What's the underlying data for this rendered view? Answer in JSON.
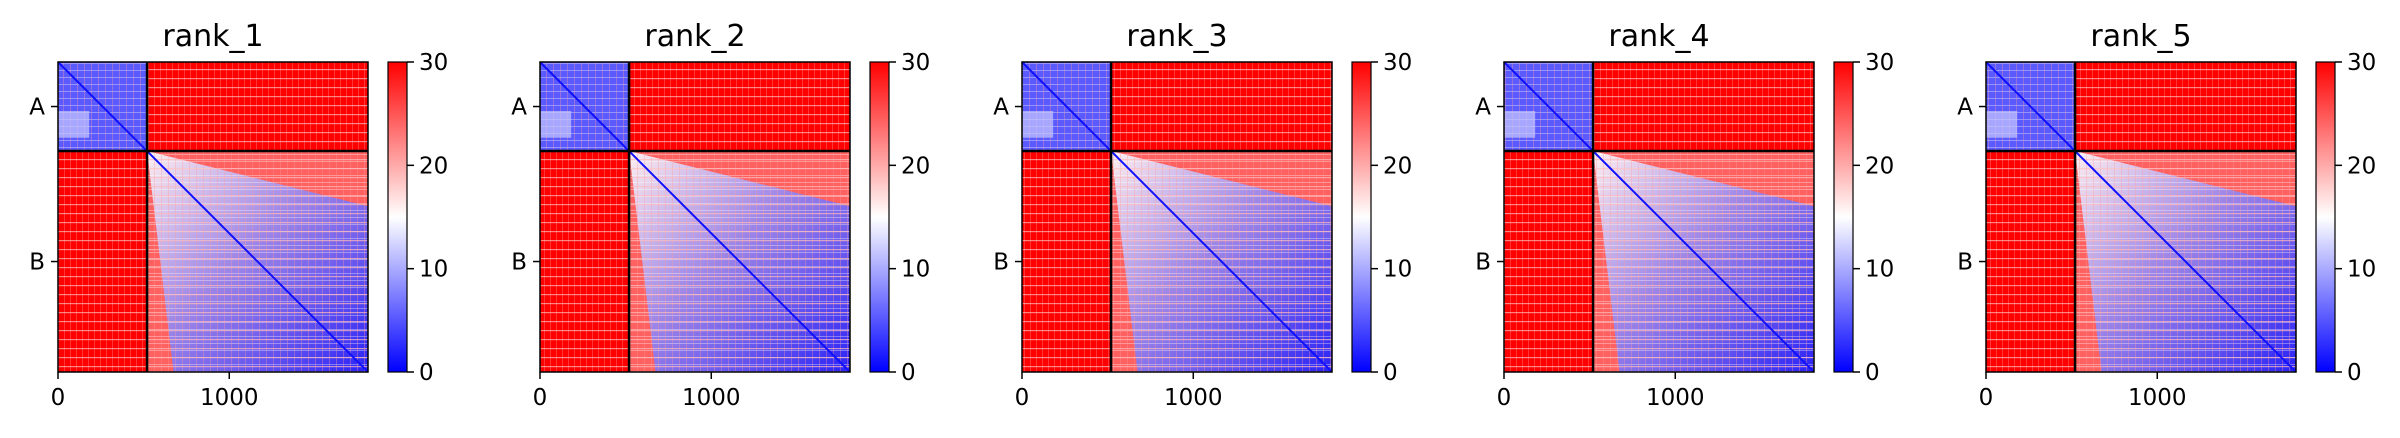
{
  "chart_data": [
    {
      "type": "heatmap",
      "title": "rank_1",
      "x_ticks": [
        "0",
        "1000"
      ],
      "y_ticks": [
        "A",
        "B"
      ],
      "colorbar": {
        "ticks": [
          "0",
          "10",
          "20",
          "30"
        ],
        "range": [
          0,
          30
        ]
      },
      "segments": {
        "A": [
          0,
          520
        ],
        "B": [
          520,
          1810
        ]
      },
      "xlim": [
        0,
        1810
      ],
      "colormap": [
        "#0000ff",
        "#ffffff",
        "#ff0000"
      ]
    },
    {
      "type": "heatmap",
      "title": "rank_2",
      "x_ticks": [
        "0",
        "1000"
      ],
      "y_ticks": [
        "A",
        "B"
      ],
      "colorbar": {
        "ticks": [
          "0",
          "10",
          "20",
          "30"
        ],
        "range": [
          0,
          30
        ]
      },
      "segments": {
        "A": [
          0,
          520
        ],
        "B": [
          520,
          1810
        ]
      },
      "xlim": [
        0,
        1810
      ],
      "colormap": [
        "#0000ff",
        "#ffffff",
        "#ff0000"
      ]
    },
    {
      "type": "heatmap",
      "title": "rank_3",
      "x_ticks": [
        "0",
        "1000"
      ],
      "y_ticks": [
        "A",
        "B"
      ],
      "colorbar": {
        "ticks": [
          "0",
          "10",
          "20",
          "30"
        ],
        "range": [
          0,
          30
        ]
      },
      "segments": {
        "A": [
          0,
          520
        ],
        "B": [
          520,
          1810
        ]
      },
      "xlim": [
        0,
        1810
      ],
      "colormap": [
        "#0000ff",
        "#ffffff",
        "#ff0000"
      ]
    },
    {
      "type": "heatmap",
      "title": "rank_4",
      "x_ticks": [
        "0",
        "1000"
      ],
      "y_ticks": [
        "A",
        "B"
      ],
      "colorbar": {
        "ticks": [
          "0",
          "10",
          "20",
          "30"
        ],
        "range": [
          0,
          30
        ]
      },
      "segments": {
        "A": [
          0,
          520
        ],
        "B": [
          520,
          1810
        ]
      },
      "xlim": [
        0,
        1810
      ],
      "colormap": [
        "#0000ff",
        "#ffffff",
        "#ff0000"
      ]
    },
    {
      "type": "heatmap",
      "title": "rank_5",
      "x_ticks": [
        "0",
        "1000"
      ],
      "y_ticks": [
        "A",
        "B"
      ],
      "colorbar": {
        "ticks": [
          "0",
          "10",
          "20",
          "30"
        ],
        "range": [
          0,
          30
        ]
      },
      "segments": {
        "A": [
          0,
          520
        ],
        "B": [
          520,
          1810
        ]
      },
      "xlim": [
        0,
        1810
      ],
      "colormap": [
        "#0000ff",
        "#ffffff",
        "#ff0000"
      ]
    }
  ]
}
